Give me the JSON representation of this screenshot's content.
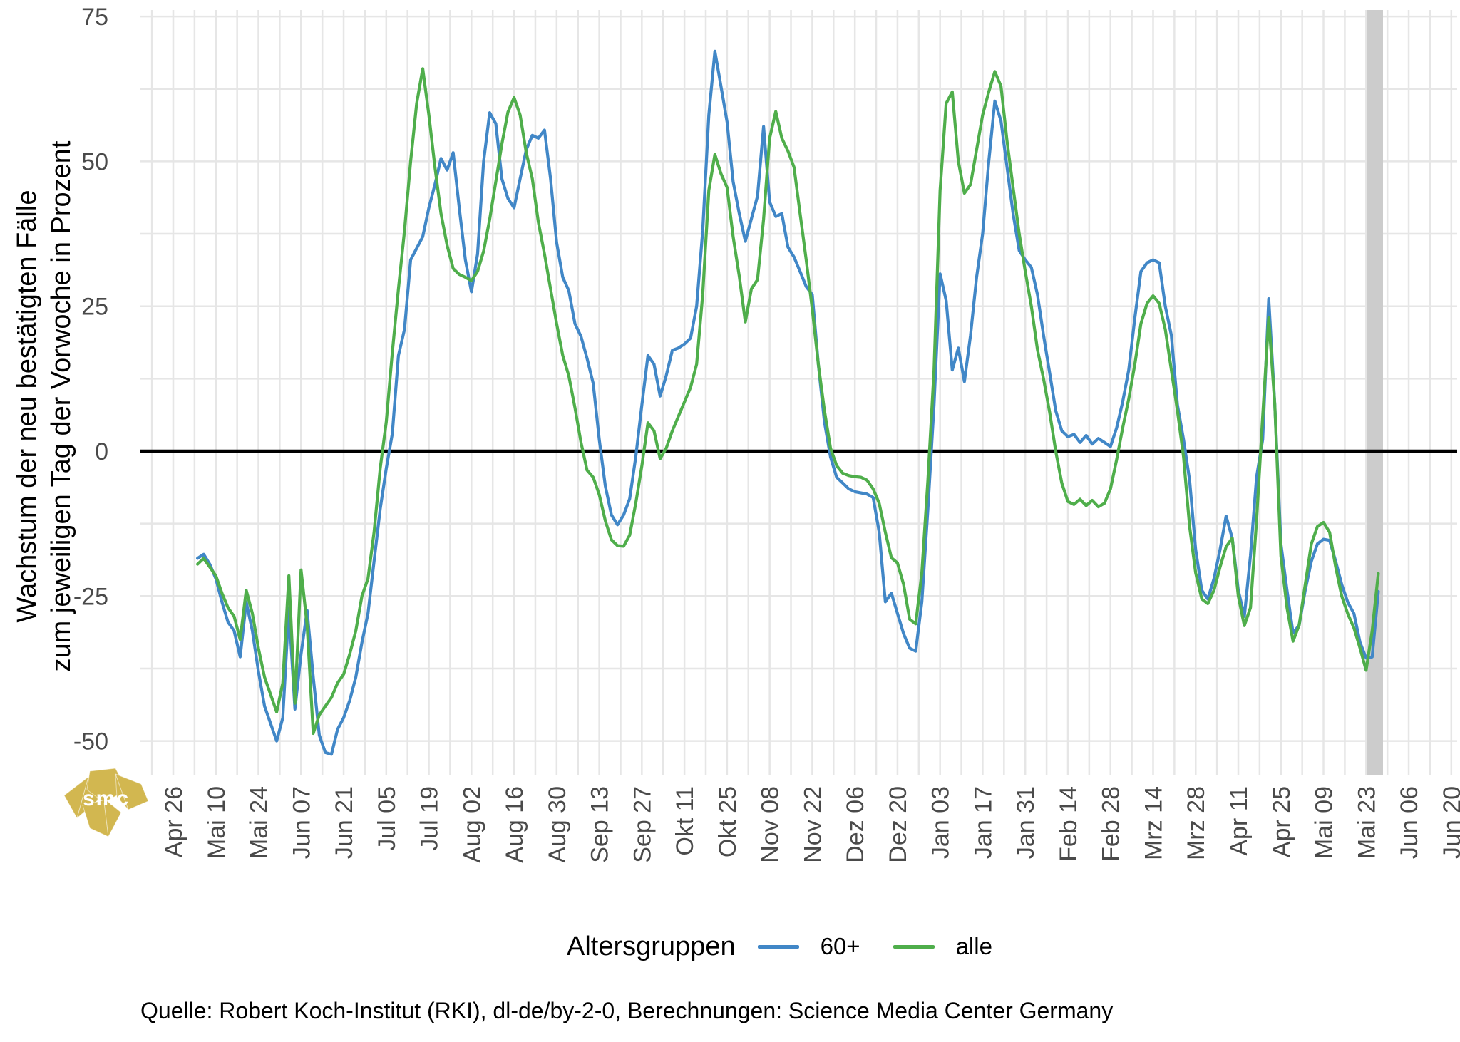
{
  "y_axis_title_line1": "Wachstum der neu bestätigten Fälle",
  "y_axis_title_line2": "zum jeweiligen Tag der Vorwoche in Prozent",
  "caption": "Quelle: Robert Koch-Institut (RKI), dl-de/by-2-0, Berechnungen: Science Media Center Germany",
  "logo_text": "smc",
  "colors": {
    "series_60plus": "#4187c7",
    "series_alle": "#4fae4b",
    "gridline": "#e6e6e6",
    "zero_line": "#000000",
    "axis_text": "#4a4a4a",
    "highlight_band": "#cccccc",
    "logo_gold": "#d2b750"
  },
  "chart_data": {
    "type": "line",
    "title": "",
    "xlabel": "",
    "ylabel": "Wachstum der neu bestätigten Fälle zum jeweiligen Tag der Vorwoche in Prozent",
    "ylim": [
      -56,
      76
    ],
    "grid": true,
    "zero_line": true,
    "y_ticks": [
      75,
      50,
      25,
      0,
      -25,
      -50
    ],
    "x_axis_ticks": [
      "Apr 26",
      "Mai 10",
      "Mai 24",
      "Jun 07",
      "Jun 21",
      "Jul 05",
      "Jul 19",
      "Aug 02",
      "Aug 16",
      "Aug 30",
      "Sep 13",
      "Sep 27",
      "Okt 11",
      "Okt 25",
      "Nov 08",
      "Nov 22",
      "Dez 06",
      "Dez 20",
      "Jan 03",
      "Jan 17",
      "Jan 31",
      "Feb 14",
      "Feb 28",
      "Mrz 14",
      "Mrz 28",
      "Apr 11",
      "Apr 25",
      "Mai 09",
      "Mai 23",
      "Jun 06",
      "Jun 20"
    ],
    "x_tick_interval_days": 14,
    "x_start_offset_days_after_first_tick": 8,
    "x_sample_step_days": 2,
    "highlight_band": {
      "note": "gray band over most recent days",
      "from_label": "Mai 23",
      "span_days": 5.4
    },
    "legend": {
      "title": "Altersgruppen",
      "position": "bottom",
      "entries": [
        {
          "label": "60+",
          "color": "#4187c7"
        },
        {
          "label": "alle",
          "color": "#4fae4b"
        }
      ]
    },
    "series": [
      {
        "name": "60+",
        "values": [
          -18.5,
          -17.8,
          -19.5,
          -22,
          -26,
          -29.5,
          -31,
          -35.5,
          -26,
          -31,
          -38,
          -44,
          -47,
          -50,
          -46,
          -27,
          -44.5,
          -35,
          -27.5,
          -39,
          -49,
          -52,
          -52.3,
          -48,
          -46,
          -43,
          -39,
          -33,
          -28,
          -19,
          -10,
          -3,
          3,
          16.5,
          21,
          33,
          35,
          37,
          42,
          46,
          50.5,
          48.5,
          51.5,
          42,
          33,
          27.5,
          34,
          50,
          58.4,
          56.5,
          47,
          43.6,
          42,
          47,
          52,
          54.5,
          54,
          55.4,
          47,
          36,
          30,
          27.7,
          22,
          19.8,
          16,
          11.7,
          2,
          -6,
          -11,
          -12.7,
          -11,
          -8.2,
          -1,
          8,
          16.5,
          15,
          9.5,
          13,
          17.4,
          17.8,
          18.5,
          19.5,
          25,
          38,
          58,
          69,
          63,
          56.8,
          46.5,
          41,
          36.2,
          40.1,
          44,
          56,
          43,
          40.5,
          41,
          35.2,
          33.5,
          31,
          28.4,
          27,
          15,
          5,
          -1,
          -4.5,
          -5.5,
          -6.5,
          -7,
          -7.2,
          -7.4,
          -8,
          -14,
          -26,
          -24.5,
          -28,
          -31.5,
          -34,
          -34.5,
          -26,
          -10,
          8,
          30.6,
          26,
          14,
          17.8,
          12,
          20,
          30,
          37.5,
          50,
          60.4,
          57,
          49,
          41,
          34.6,
          33,
          31.7,
          27,
          20,
          13.5,
          7,
          3.5,
          2.5,
          2.9,
          1.5,
          2.7,
          1.2,
          2.2,
          1.5,
          0.8,
          4,
          8.5,
          14,
          23,
          31,
          32.5,
          33,
          32.5,
          25,
          20,
          8,
          2,
          -5,
          -17,
          -24,
          -25.5,
          -22,
          -17,
          -11.2,
          -15,
          -24,
          -28.5,
          -18,
          -4.5,
          2,
          26.3,
          8,
          -16,
          -24,
          -31.4,
          -30,
          -24,
          -19,
          -16,
          -15.2,
          -15.4,
          -19,
          -23,
          -26.1,
          -28,
          -33,
          -35.7,
          -35.5,
          -24.2
        ]
      },
      {
        "name": "alle",
        "values": [
          -19.5,
          -18.5,
          -20,
          -21.5,
          -24.5,
          -27,
          -28.5,
          -32.5,
          -24,
          -28,
          -34,
          -39,
          -42,
          -45,
          -40,
          -21.5,
          -43.5,
          -20.5,
          -30,
          -48.7,
          -45.5,
          -44,
          -42.5,
          -40,
          -38.5,
          -35,
          -31,
          -25,
          -22,
          -14,
          -3,
          5,
          17,
          28,
          38,
          50,
          60,
          66,
          58,
          49,
          41,
          35.5,
          31.5,
          30.5,
          30,
          29.4,
          31,
          34.5,
          40,
          46.5,
          53,
          58.5,
          61,
          58,
          51.5,
          47,
          39.5,
          34,
          28,
          22,
          16.5,
          13,
          7.5,
          1.5,
          -3.3,
          -4.5,
          -7.5,
          -12,
          -15.3,
          -16.3,
          -16.4,
          -14.5,
          -9,
          -2.5,
          4.9,
          3.5,
          -1.3,
          0.5,
          3.5,
          6,
          8.5,
          11,
          15,
          27,
          45,
          51.2,
          47.9,
          45.5,
          37,
          30.2,
          22.3,
          28,
          29.6,
          40,
          54,
          58.6,
          54,
          51.8,
          49,
          41,
          33,
          24.5,
          15,
          7,
          0.5,
          -2.5,
          -3.8,
          -4.2,
          -4.4,
          -4.5,
          -5,
          -6.5,
          -9,
          -14,
          -18.4,
          -19.3,
          -23,
          -29,
          -29.8,
          -21,
          -5,
          14,
          45,
          60,
          62,
          50,
          44.5,
          46,
          52,
          58,
          62,
          65.5,
          63,
          53.5,
          45.5,
          37.5,
          31,
          25,
          17.5,
          12.5,
          6.7,
          0,
          -5.5,
          -8.7,
          -9.2,
          -8.3,
          -9.4,
          -8.5,
          -9.6,
          -9,
          -6.5,
          -1.5,
          4,
          9,
          15,
          22,
          25.5,
          26.8,
          25.5,
          21,
          14,
          7,
          -1,
          -13,
          -21,
          -25.5,
          -26.3,
          -24,
          -20,
          -16.5,
          -15,
          -25,
          -30.1,
          -27,
          -12,
          6,
          23,
          8,
          -18.1,
          -27,
          -32.8,
          -30,
          -23,
          -16,
          -13,
          -12.3,
          -14,
          -20,
          -25,
          -28.1,
          -30.5,
          -34,
          -37.8,
          -31,
          -21.1
        ]
      }
    ]
  }
}
